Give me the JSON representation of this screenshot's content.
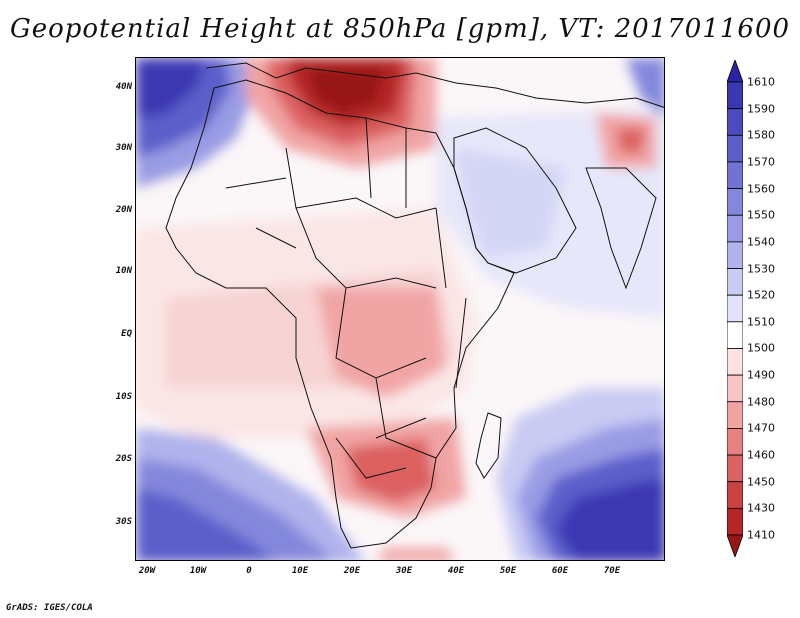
{
  "title": "Geopotential Height at 850hPa [gpm], VT: 2017011600",
  "footer": "GrADS: IGES/COLA",
  "axes": {
    "y_labels": [
      "40N",
      "30N",
      "20N",
      "10N",
      "EQ",
      "10S",
      "20S",
      "30S"
    ],
    "y_values": [
      40,
      30,
      20,
      10,
      0,
      -10,
      -20,
      -30
    ],
    "x_labels": [
      "20W",
      "10W",
      "0",
      "10E",
      "20E",
      "30E",
      "40E",
      "50E",
      "60E",
      "70E"
    ],
    "x_values": [
      -20,
      -10,
      0,
      10,
      20,
      30,
      40,
      50,
      60,
      70
    ],
    "lon_range": [
      -22,
      80
    ],
    "lat_range": [
      -37,
      45
    ]
  },
  "colorbar": {
    "labels": [
      "1610",
      "1590",
      "1580",
      "1570",
      "1560",
      "1550",
      "1540",
      "1530",
      "1520",
      "1510",
      "1500",
      "1490",
      "1480",
      "1470",
      "1460",
      "1450",
      "1430",
      "1410"
    ],
    "colors": [
      "#2a23a6",
      "#3a37b2",
      "#4a4bbe",
      "#5c5fca",
      "#7073d4",
      "#8488dc",
      "#999ce4",
      "#b0b3ec",
      "#c9cbf3",
      "#e2e3fa",
      "#ffffff",
      "#fde2e2",
      "#f8c4c4",
      "#f1a4a4",
      "#e88282",
      "#dc6161",
      "#cc4141",
      "#b52727",
      "#971616"
    ]
  },
  "map": {
    "field": "Geopotential Height",
    "level": "850hPa",
    "units": "gpm",
    "valid_time": "2017011600"
  }
}
